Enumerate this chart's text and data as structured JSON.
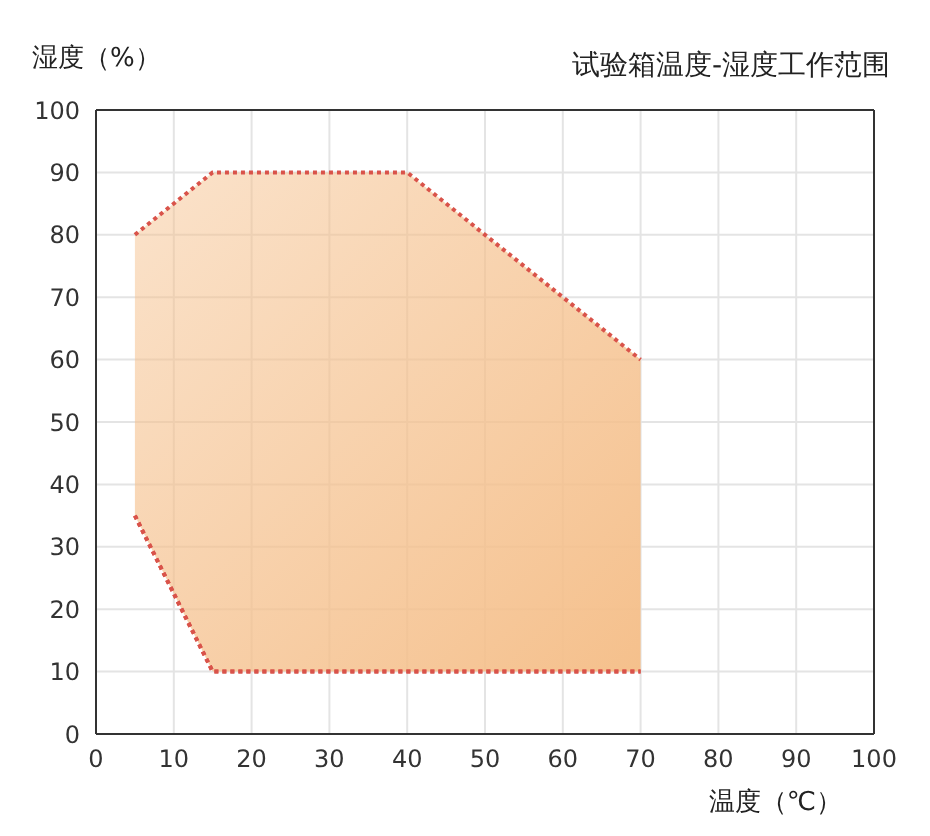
{
  "chart_data": {
    "type": "area",
    "title": "试验箱温度-湿度工作范围",
    "xlabel": "温度（℃）",
    "ylabel": "湿度（%）",
    "xlim": [
      0,
      100
    ],
    "xticks": [
      0,
      10,
      20,
      30,
      40,
      50,
      60,
      70,
      80,
      90,
      100
    ],
    "ylim": [
      0,
      100
    ],
    "yticks": [
      0,
      10,
      20,
      30,
      40,
      50,
      60,
      70,
      80,
      90,
      100
    ],
    "grid": true,
    "line_style": "dotted",
    "series": [
      {
        "color": "#f5c08c",
        "x": [
          5,
          15,
          40,
          70
        ],
        "values": [
          80,
          90,
          90,
          60
        ]
      },
      {
        "type": "line",
        "color": "#d9534a",
        "x": [
          5,
          15,
          40,
          70
        ],
        "values": [
          35,
          10,
          10,
          10
        ]
      }
    ]
  }
}
